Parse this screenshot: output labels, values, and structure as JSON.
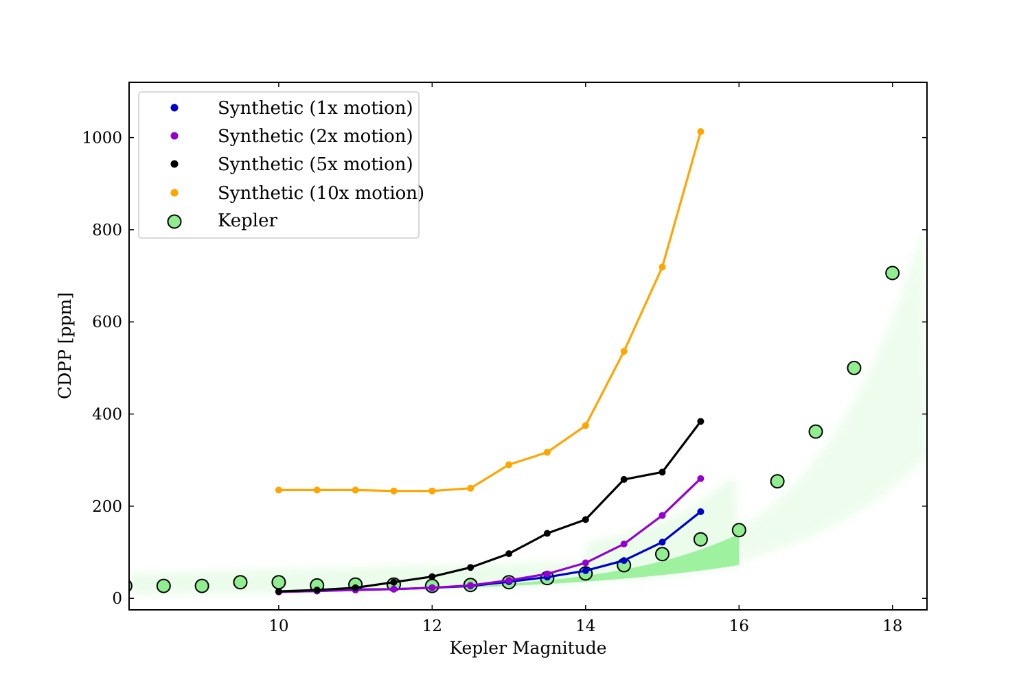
{
  "chart_data": {
    "type": "scatter",
    "xlabel": "Kepler Magnitude",
    "ylabel": "CDPP [ppm]",
    "xlim": [
      8.05,
      18.45
    ],
    "ylim": [
      -25,
      1120
    ],
    "xticks": [
      10,
      12,
      14,
      16,
      18
    ],
    "yticks": [
      0,
      200,
      400,
      600,
      800,
      1000
    ],
    "x_tick_labels": [
      "10",
      "12",
      "14",
      "16",
      "18"
    ],
    "y_tick_labels": [
      "0",
      "200",
      "400",
      "600",
      "800",
      "1000"
    ],
    "legend_position": "top-left",
    "background_scatter_color": "#90ee90",
    "series": [
      {
        "name": "Synthetic (1x motion)",
        "color": "#0000cd",
        "style": "line-with-points",
        "x": [
          10,
          10.5,
          11,
          11.5,
          12,
          12.5,
          13,
          13.5,
          14,
          14.5,
          15,
          15.5
        ],
        "y": [
          14,
          16,
          19,
          20,
          23,
          27,
          36,
          46,
          60,
          82,
          122,
          188
        ]
      },
      {
        "name": "Synthetic (2x motion)",
        "color": "#9400d3",
        "style": "line-with-points",
        "x": [
          10,
          10.5,
          11,
          11.5,
          12,
          12.5,
          13,
          13.5,
          14,
          14.5,
          15,
          15.5
        ],
        "y": [
          14,
          16,
          18,
          20,
          23,
          28,
          39,
          53,
          77,
          118,
          180,
          260
        ]
      },
      {
        "name": "Synthetic (5x motion)",
        "color": "#000000",
        "style": "line-with-points",
        "x": [
          10,
          10.5,
          11,
          11.5,
          12,
          12.5,
          13,
          13.5,
          14,
          14.5,
          15,
          15.5
        ],
        "y": [
          15,
          18,
          23,
          35,
          47,
          67,
          97,
          141,
          171,
          258,
          274,
          384
        ]
      },
      {
        "name": "Synthetic (10x motion)",
        "color": "#ffa500",
        "style": "line-with-points",
        "x": [
          10,
          10.5,
          11,
          11.5,
          12,
          12.5,
          13,
          13.5,
          14,
          14.5,
          15,
          15.5
        ],
        "y": [
          235,
          235,
          235,
          233,
          233,
          239,
          290,
          317,
          375,
          536,
          719,
          1013
        ]
      },
      {
        "name": "Kepler",
        "color": "#90ee90",
        "edge_color": "#000000",
        "style": "circle-markers",
        "x": [
          8,
          8.5,
          9,
          9.5,
          10,
          10.5,
          11,
          11.5,
          12,
          12.5,
          13,
          13.5,
          14,
          14.5,
          15,
          15.5,
          16,
          16.5,
          17,
          17.5,
          18
        ],
        "y": [
          27,
          27,
          27,
          35,
          35,
          28,
          30,
          30,
          27,
          29,
          35,
          44,
          54,
          72,
          96,
          128,
          148,
          254,
          362,
          500,
          706
        ]
      }
    ]
  }
}
